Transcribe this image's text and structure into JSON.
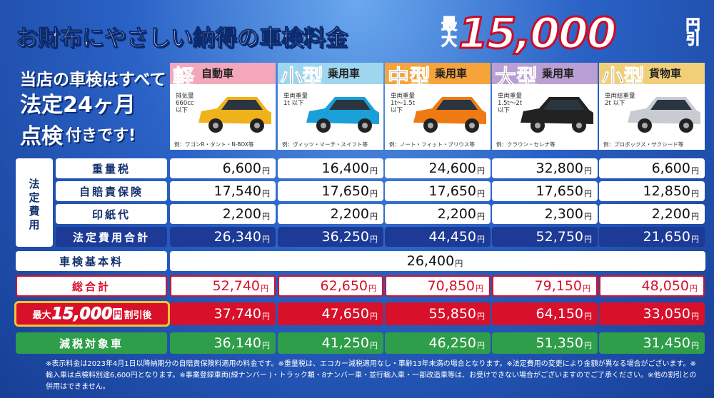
{
  "header": {
    "title": "お財布にやさしい納得の車検料金",
    "badge": {
      "prefix": "最大",
      "amount": "15,000",
      "suffix": "円引"
    }
  },
  "intro": {
    "lines": [
      "当店の車検はすべて",
      "法定24ヶ月",
      "点検",
      "付きです!"
    ]
  },
  "unit": "円",
  "columns": [
    {
      "size": "軽",
      "kind": "自動車",
      "spec": [
        "排気量",
        "660cc",
        "以下"
      ],
      "example": "例：ワゴンR・タント・N-BOX等"
    },
    {
      "size": "小型",
      "kind": "乗用車",
      "spec": [
        "車両重量",
        "1t 以下"
      ],
      "example": "例：ヴィッツ・マーチ・スイフト等"
    },
    {
      "size": "中型",
      "kind": "乗用車",
      "spec": [
        "車両重量",
        "1t～1.5t",
        "以下"
      ],
      "example": "例：ノート・フィット・プリウス等"
    },
    {
      "size": "大型",
      "kind": "乗用車",
      "spec": [
        "車両重量",
        "1.5t～2t",
        "以下"
      ],
      "example": "例：クラウン・セレナ等"
    },
    {
      "size": "小型",
      "kind": "貨物車",
      "spec": [
        "車両総重量",
        "2t 以下"
      ],
      "example": "例：プロボックス・サクシード等"
    }
  ],
  "legal": {
    "label": "法定費用",
    "rows": [
      {
        "label": "重量税",
        "values": [
          "6,600",
          "16,400",
          "24,600",
          "32,800",
          "6,600"
        ]
      },
      {
        "label": "自賠責保険",
        "values": [
          "17,540",
          "17,650",
          "17,650",
          "17,650",
          "12,850"
        ]
      },
      {
        "label": "印紙代",
        "values": [
          "2,200",
          "2,200",
          "2,200",
          "2,300",
          "2,200"
        ]
      }
    ],
    "total": {
      "label": "法定費用合計",
      "values": [
        "26,340",
        "36,250",
        "44,450",
        "52,750",
        "21,650"
      ]
    }
  },
  "basic": {
    "label": "車検基本料",
    "value": "26,400"
  },
  "grand_total": {
    "label": "総合計",
    "values": [
      "52,740",
      "62,650",
      "70,850",
      "79,150",
      "48,050"
    ]
  },
  "discount": {
    "label": {
      "prefix": "最大",
      "amount": "15,000",
      "unit": "円",
      "suffix": "割引後"
    },
    "values": [
      "37,740",
      "47,650",
      "55,850",
      "64,150",
      "33,050"
    ]
  },
  "tax_reduced": {
    "label": "減税対象車",
    "values": [
      "36,140",
      "41,250",
      "46,250",
      "51,350",
      "31,450"
    ]
  },
  "footnote": "※表示料金は2023年4月1日以降納期分の自賠責保険料適用の料金です。※重量税は、エコカー減税適用なし・車齢13年未満の場合となります。※法定費用の変更により金額が異なる場合がございます。※輸入車は点検料別途6,600円となります。※事業登録車両(緑ナンバー )・トラック類・8ナンバー車・並行輸入車・一部改造車等は、お受けできない場合がございますのでご了承ください。※他の割引との併用はできません。"
}
